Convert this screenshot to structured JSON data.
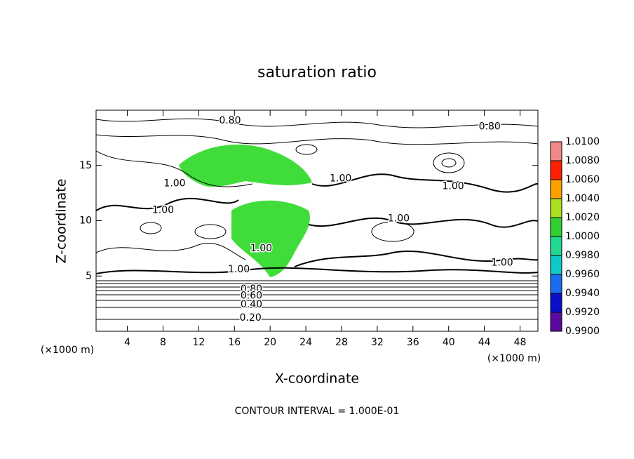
{
  "chart_data": {
    "type": "contour",
    "title": "saturation ratio",
    "x_label": "X-coordinate",
    "y_label": "Z-coordinate",
    "x_unit": "(×1000 m)",
    "y_unit": "(×1000 m)",
    "footnote": "CONTOUR INTERVAL = 1.000E-01",
    "xlim": [
      0.5,
      50
    ],
    "ylim": [
      0,
      20
    ],
    "xticks": [
      4,
      8,
      12,
      16,
      20,
      24,
      28,
      32,
      36,
      40,
      44,
      48
    ],
    "yticks": [
      5,
      10,
      15
    ],
    "colorbar": {
      "levels": [
        {
          "value": 0.99,
          "label": "0.9900"
        },
        {
          "value": 0.992,
          "label": "0.9920"
        },
        {
          "value": 0.994,
          "label": "0.9940"
        },
        {
          "value": 0.996,
          "label": "0.9960"
        },
        {
          "value": 0.998,
          "label": "0.9980"
        },
        {
          "value": 1.0,
          "label": "1.0000"
        },
        {
          "value": 1.002,
          "label": "1.0020"
        },
        {
          "value": 1.004,
          "label": "1.0040"
        },
        {
          "value": 1.006,
          "label": "1.0060"
        },
        {
          "value": 1.008,
          "label": "1.0080"
        },
        {
          "value": 1.01,
          "label": "1.0100"
        }
      ],
      "colors": [
        "#5a0aa0",
        "#0a10c8",
        "#1a6cf0",
        "#10c8c8",
        "#20d890",
        "#30d030",
        "#a8e020",
        "#ffa000",
        "#ff2000",
        "#f08888"
      ]
    },
    "contour_labels": [
      {
        "text": "0.80",
        "x": 15.5,
        "y": 19.05
      },
      {
        "text": "0.80",
        "x": 44.6,
        "y": 18.5
      },
      {
        "text": "1.00",
        "x": 9.3,
        "y": 13.35
      },
      {
        "text": "1.00",
        "x": 27.9,
        "y": 13.8
      },
      {
        "text": "1.00",
        "x": 40.5,
        "y": 13.1
      },
      {
        "text": "1.00",
        "x": 8.0,
        "y": 10.95
      },
      {
        "text": "1.00",
        "x": 34.4,
        "y": 10.2
      },
      {
        "text": "1.00",
        "x": 19.0,
        "y": 7.5
      },
      {
        "text": "1.00",
        "x": 46.0,
        "y": 6.2
      },
      {
        "text": "1.00",
        "x": 16.5,
        "y": 5.6
      },
      {
        "text": "0.80",
        "x": 17.9,
        "y": 3.8
      },
      {
        "text": "0.60",
        "x": 17.9,
        "y": 3.2
      },
      {
        "text": "0.40",
        "x": 17.9,
        "y": 2.4
      },
      {
        "text": "0.20",
        "x": 17.8,
        "y": 1.2
      }
    ]
  }
}
